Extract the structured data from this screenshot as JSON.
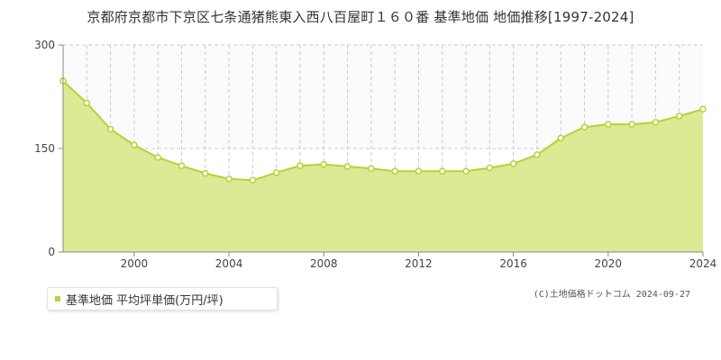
{
  "header": {
    "title": "京都府京都市下京区七条通猪熊東入西八百屋町１６０番 基準地価 地価推移[1997-2024]"
  },
  "colors": {
    "area_fill": "#dbea94",
    "line": "#b5d334",
    "upper_band": "#fbfafc",
    "grid": "#cccccc",
    "axis": "#888888"
  },
  "legend": {
    "label": "基準地価 平均坪単価(万円/坪)"
  },
  "footer": {
    "credit": "(C)土地価格ドットコム 2024-09-27"
  },
  "chart_data": {
    "type": "area",
    "title": "京都府京都市下京区七条通猪熊東入西八百屋町１６０番 基準地価 地価推移[1997-2024]",
    "xlabel": "",
    "ylabel": "",
    "ylim": [
      0,
      300
    ],
    "xlim": [
      1997,
      2024
    ],
    "yticks": [
      0,
      150,
      300
    ],
    "xticks": [
      2000,
      2004,
      2008,
      2012,
      2016,
      2020,
      2024
    ],
    "grid": true,
    "legend_position": "bottom-left",
    "series": [
      {
        "name": "基準地価 平均坪単価(万円/坪)",
        "x": [
          1997,
          1998,
          1999,
          2000,
          2001,
          2002,
          2003,
          2004,
          2005,
          2006,
          2007,
          2008,
          2009,
          2010,
          2011,
          2012,
          2013,
          2014,
          2015,
          2016,
          2017,
          2018,
          2019,
          2020,
          2021,
          2022,
          2023,
          2024
        ],
        "values": [
          248,
          216,
          178,
          155,
          137,
          125,
          114,
          106,
          104,
          115,
          125,
          127,
          124,
          121,
          117,
          117,
          117,
          117,
          122,
          128,
          141,
          165,
          181,
          185,
          185,
          188,
          197,
          207
        ]
      }
    ]
  }
}
